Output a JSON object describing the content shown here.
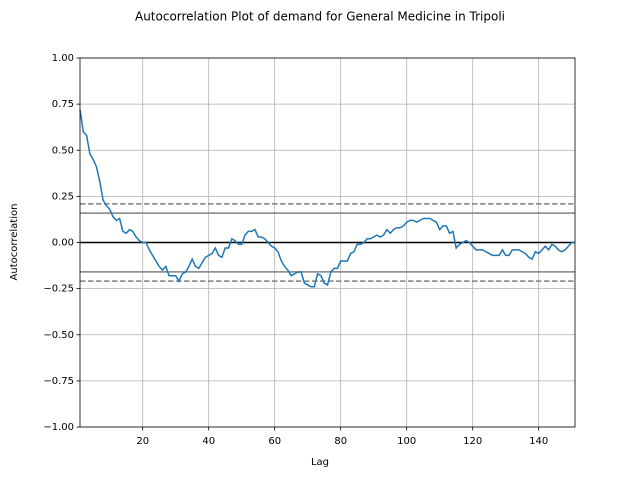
{
  "chart_data": {
    "type": "line",
    "title": "Autocorrelation Plot of demand for General Medicine in Tripoli",
    "x_label": "Lag",
    "y_label": "Autocorrelation",
    "x": [
      1,
      2,
      3,
      4,
      5,
      6,
      7,
      8,
      9,
      10,
      11,
      12,
      13,
      14,
      15,
      16,
      17,
      18,
      19,
      20,
      21,
      22,
      23,
      24,
      25,
      26,
      27,
      28,
      29,
      30,
      31,
      32,
      33,
      34,
      35,
      36,
      37,
      38,
      39,
      40,
      41,
      42,
      43,
      44,
      45,
      46,
      47,
      48,
      49,
      50,
      51,
      52,
      53,
      54,
      55,
      56,
      57,
      58,
      59,
      60,
      61,
      62,
      63,
      64,
      65,
      66,
      67,
      68,
      69,
      70,
      71,
      72,
      73,
      74,
      75,
      76,
      77,
      78,
      79,
      80,
      81,
      82,
      83,
      84,
      85,
      86,
      87,
      88,
      89,
      90,
      91,
      92,
      93,
      94,
      95,
      96,
      97,
      98,
      99,
      100,
      101,
      102,
      103,
      104,
      105,
      106,
      107,
      108,
      109,
      110,
      111,
      112,
      113,
      114,
      115,
      116,
      117,
      118,
      119,
      120,
      121,
      122,
      123,
      124,
      125,
      126,
      127,
      128,
      129,
      130,
      131,
      132,
      133,
      134,
      135,
      136,
      137,
      138,
      139,
      140,
      141,
      142,
      143,
      144,
      145,
      146,
      147,
      148,
      149,
      150,
      151
    ],
    "series": [
      {
        "name": "autocorrelation",
        "color": "#1f77b4",
        "values": [
          0.72,
          0.6,
          0.58,
          0.48,
          0.45,
          0.41,
          0.33,
          0.23,
          0.2,
          0.18,
          0.14,
          0.12,
          0.13,
          0.06,
          0.05,
          0.07,
          0.06,
          0.03,
          0.01,
          0.0,
          0.0,
          -0.04,
          -0.07,
          -0.1,
          -0.13,
          -0.15,
          -0.13,
          -0.18,
          -0.18,
          -0.18,
          -0.21,
          -0.17,
          -0.16,
          -0.13,
          -0.09,
          -0.13,
          -0.14,
          -0.11,
          -0.08,
          -0.07,
          -0.06,
          -0.03,
          -0.07,
          -0.08,
          -0.03,
          -0.03,
          0.02,
          0.01,
          -0.01,
          -0.01,
          0.04,
          0.06,
          0.06,
          0.07,
          0.03,
          0.03,
          0.02,
          0.0,
          -0.02,
          -0.03,
          -0.05,
          -0.1,
          -0.13,
          -0.15,
          -0.18,
          -0.17,
          -0.16,
          -0.16,
          -0.22,
          -0.23,
          -0.24,
          -0.24,
          -0.17,
          -0.18,
          -0.22,
          -0.23,
          -0.16,
          -0.14,
          -0.14,
          -0.1,
          -0.1,
          -0.1,
          -0.06,
          -0.05,
          -0.01,
          -0.01,
          0.0,
          0.02,
          0.02,
          0.03,
          0.04,
          0.03,
          0.04,
          0.07,
          0.05,
          0.07,
          0.08,
          0.08,
          0.09,
          0.11,
          0.12,
          0.12,
          0.11,
          0.12,
          0.13,
          0.13,
          0.13,
          0.12,
          0.11,
          0.07,
          0.09,
          0.09,
          0.05,
          0.06,
          -0.03,
          -0.01,
          0.0,
          0.01,
          0.0,
          -0.02,
          -0.04,
          -0.04,
          -0.04,
          -0.05,
          -0.06,
          -0.07,
          -0.07,
          -0.07,
          -0.04,
          -0.07,
          -0.07,
          -0.04,
          -0.04,
          -0.04,
          -0.05,
          -0.06,
          -0.08,
          -0.09,
          -0.05,
          -0.06,
          -0.04,
          -0.02,
          -0.04,
          -0.01,
          -0.02,
          -0.04,
          -0.05,
          -0.04,
          -0.02,
          0.0,
          0.0
        ]
      }
    ],
    "reference_lines": [
      {
        "value": 0.2096,
        "color": "#808080",
        "dashed": true
      },
      {
        "value": 0.1595,
        "color": "#808080",
        "dashed": false
      },
      {
        "value": 0,
        "color": "#000000",
        "dashed": false
      },
      {
        "value": -0.1595,
        "color": "#808080",
        "dashed": false
      },
      {
        "value": -0.2096,
        "color": "#808080",
        "dashed": true
      }
    ],
    "xlim": [
      1,
      151
    ],
    "ylim": [
      -1,
      1
    ],
    "xticks": [
      20,
      40,
      60,
      80,
      100,
      120,
      140
    ],
    "yticks": [
      {
        "value": -1,
        "label": "−1.00"
      },
      {
        "value": -0.75,
        "label": "−0.75"
      },
      {
        "value": -0.5,
        "label": "−0.50"
      },
      {
        "value": -0.25,
        "label": "−0.25"
      },
      {
        "value": 0,
        "label": "0.00"
      },
      {
        "value": 0.25,
        "label": "0.25"
      },
      {
        "value": 0.5,
        "label": "0.50"
      },
      {
        "value": 0.75,
        "label": "0.75"
      },
      {
        "value": 1,
        "label": "1.00"
      }
    ],
    "grid": true
  }
}
